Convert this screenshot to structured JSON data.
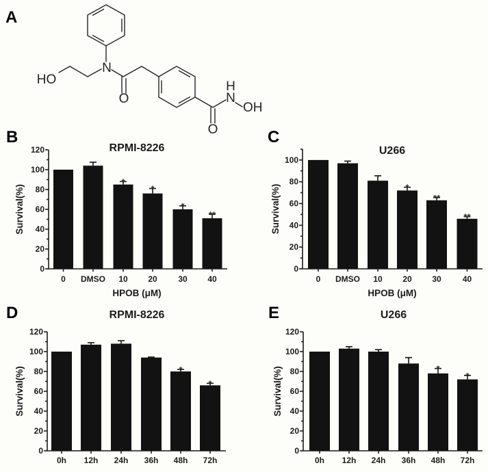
{
  "figure": {
    "panel_labels": {
      "a": "A",
      "b": "B",
      "c": "C",
      "d": "D",
      "e": "E"
    },
    "structure": {
      "atom_labels": {
        "hydroxyl": "HO",
        "amide_n": "N",
        "amide_o": "O",
        "hydroxamic_h": "H",
        "hydroxamic_n": "N",
        "hydroxamic_oh": "OH",
        "hydroxamic_o": "O"
      }
    }
  },
  "colors": {
    "bar": "#121212",
    "background": "#fdfdf9",
    "text": "#111111"
  },
  "chart_data": [
    {
      "panel": "B",
      "type": "bar",
      "title": "RPMI-8226",
      "xlabel": "HPOB (μM)",
      "ylabel": "Survival(%)",
      "ylim": [
        0,
        120
      ],
      "yticks": [
        0,
        20,
        40,
        60,
        80,
        100,
        120
      ],
      "ytick_labels": [
        "0",
        "20",
        "40",
        "60",
        "80",
        "100",
        "120"
      ],
      "categories": [
        "0",
        "DMSO",
        "10",
        "20",
        "30",
        "40"
      ],
      "values": [
        100,
        104,
        85,
        76,
        60,
        51
      ],
      "errors": [
        0,
        3.5,
        3,
        5,
        3.5,
        4
      ],
      "significance": [
        "",
        "",
        "*",
        "*",
        "*",
        "**"
      ],
      "grid": false,
      "legend": null
    },
    {
      "panel": "C",
      "type": "bar",
      "title": "U266",
      "xlabel": "HPOB (μM)",
      "ylabel": "Survival(%)",
      "ylim": [
        0,
        110
      ],
      "yticks": [
        0,
        20,
        40,
        60,
        80,
        100
      ],
      "ytick_labels": [
        "0",
        "20",
        "40",
        "60",
        "80",
        "100"
      ],
      "categories": [
        "0",
        "DMSO",
        "10",
        "20",
        "30",
        "40"
      ],
      "values": [
        100,
        97,
        81,
        72,
        63,
        46
      ],
      "errors": [
        0,
        2,
        4.5,
        3,
        2.5,
        2
      ],
      "significance": [
        "",
        "",
        "",
        "*",
        "**",
        "**"
      ],
      "grid": false,
      "legend": null
    },
    {
      "panel": "D",
      "type": "bar",
      "title": "RPMI-8226",
      "xlabel": "",
      "ylabel": "Survival(%)",
      "ylim": [
        0,
        120
      ],
      "yticks": [
        0,
        20,
        40,
        60,
        80,
        100,
        120
      ],
      "ytick_labels": [
        "0",
        "20",
        "40",
        "60",
        "80",
        "100",
        "120"
      ],
      "categories": [
        "0h",
        "12h",
        "24h",
        "36h",
        "48h",
        "72h"
      ],
      "values": [
        100,
        107,
        108,
        94,
        80,
        66
      ],
      "errors": [
        0,
        2,
        3,
        0.5,
        2,
        2
      ],
      "significance": [
        "",
        "",
        "",
        "",
        "*",
        "*"
      ],
      "grid": false,
      "legend": null
    },
    {
      "panel": "E",
      "type": "bar",
      "title": "U266",
      "xlabel": "",
      "ylabel": "Survival(%)",
      "ylim": [
        0,
        120
      ],
      "yticks": [
        0,
        20,
        40,
        60,
        80,
        100,
        120
      ],
      "ytick_labels": [
        "0",
        "20",
        "40",
        "60",
        "80",
        "100",
        "120"
      ],
      "categories": [
        "0h",
        "12h",
        "24h",
        "36h",
        "48h",
        "72h"
      ],
      "values": [
        100,
        103,
        100,
        88,
        78,
        72
      ],
      "errors": [
        0,
        2,
        2,
        6,
        5,
        4
      ],
      "significance": [
        "",
        "",
        "",
        "",
        "*",
        "*"
      ],
      "grid": false,
      "legend": null
    }
  ]
}
